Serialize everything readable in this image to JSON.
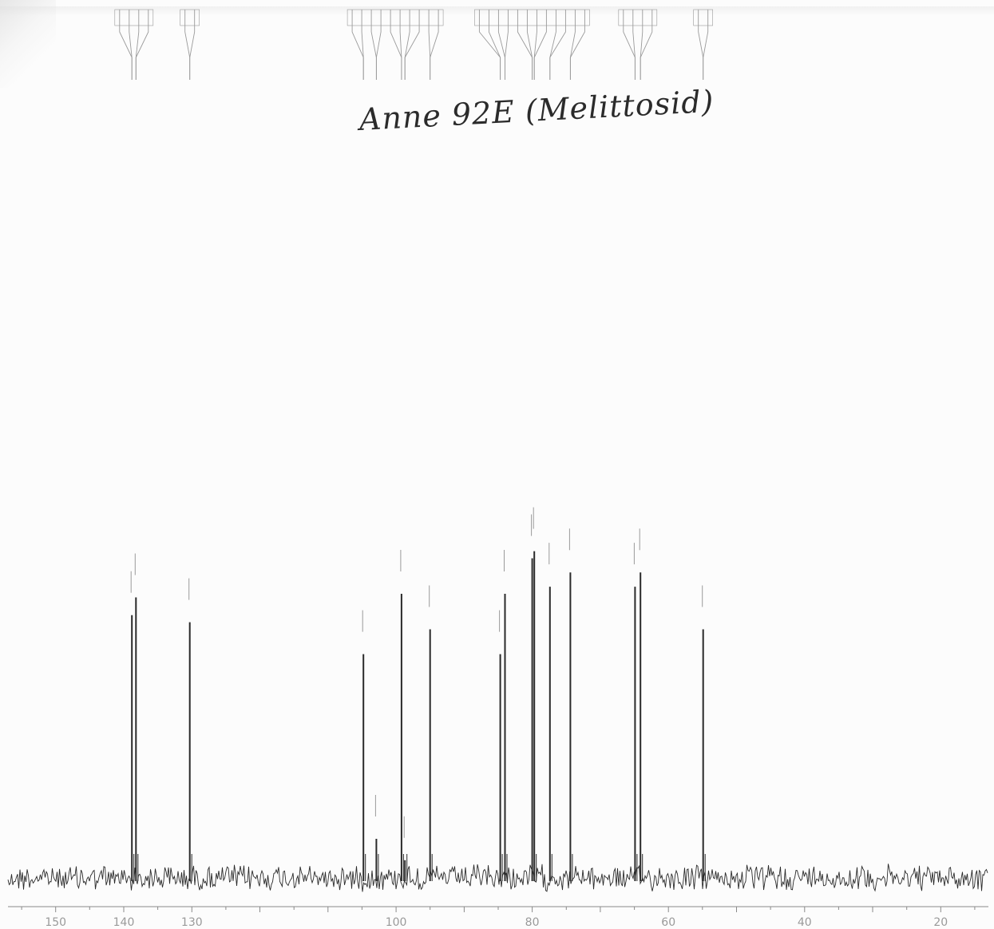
{
  "annotation": {
    "handwritten_title": "Anne 92E (Melittosid)"
  },
  "colors": {
    "trace": "#2a2a2a",
    "markers": "#9a9a9a",
    "axis": "#8a8a8a",
    "tick_text": "#9a9a9a"
  },
  "chart_data": {
    "type": "line",
    "title": "",
    "xlabel": "",
    "ylabel": "",
    "x_direction": "decreasing",
    "xlim": [
      157,
      13
    ],
    "ylim": [
      0,
      1
    ],
    "grid": false,
    "tick_labels": [
      "150",
      "140",
      "130",
      "100",
      "80",
      "60",
      "40",
      "20"
    ],
    "tick_positions": [
      150,
      140,
      130,
      100,
      80,
      60,
      40,
      20
    ],
    "peaks": {
      "x": [
        138.8,
        138.2,
        130.3,
        104.8,
        102.9,
        99.2,
        98.7,
        95.0,
        84.7,
        84.0,
        80.0,
        79.7,
        77.4,
        74.4,
        64.9,
        64.1,
        54.9
      ],
      "y": [
        0.74,
        0.79,
        0.72,
        0.63,
        0.11,
        0.8,
        0.05,
        0.7,
        0.63,
        0.8,
        0.9,
        0.92,
        0.82,
        0.86,
        0.82,
        0.86,
        0.7
      ]
    }
  }
}
